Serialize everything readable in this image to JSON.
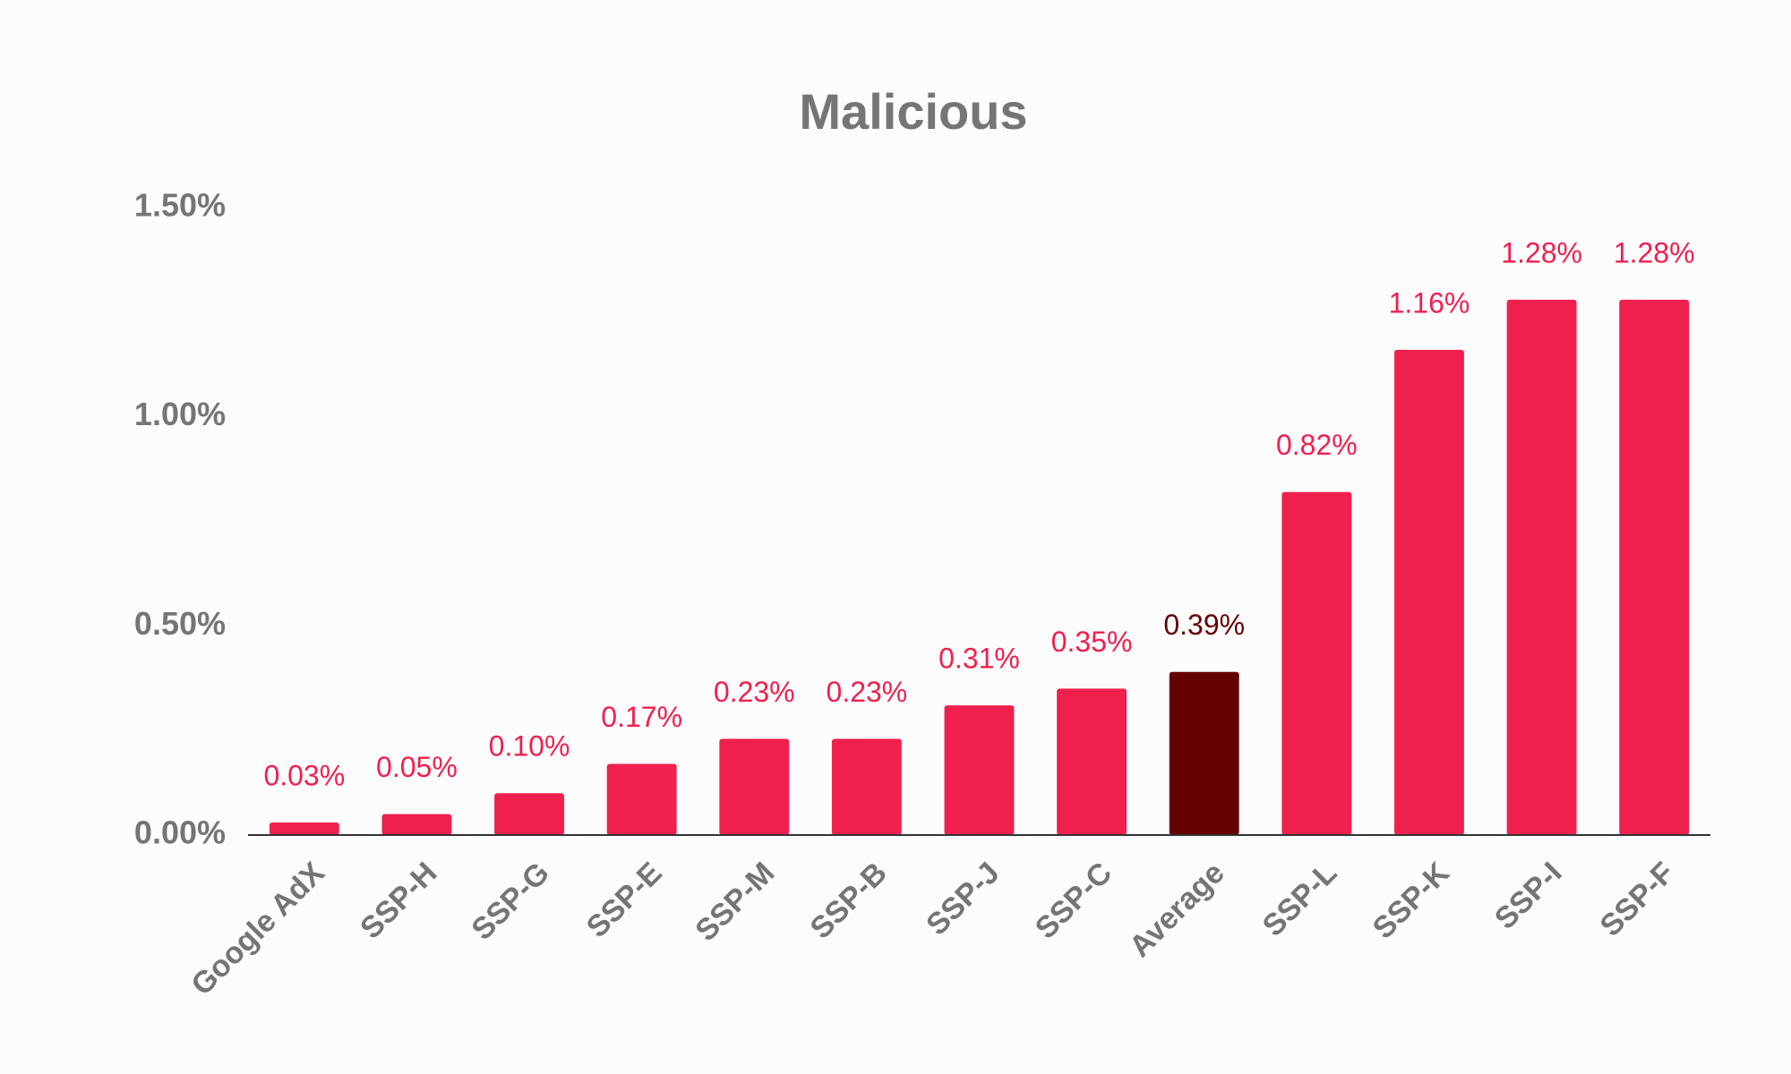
{
  "chart_data": {
    "type": "bar",
    "title": "Malicious",
    "categories": [
      "Google AdX",
      "SSP-H",
      "SSP-G",
      "SSP-E",
      "SSP-M",
      "SSP-B",
      "SSP-J",
      "SSP-C",
      "Average",
      "SSP-L",
      "SSP-K",
      "SSP-I",
      "SSP-F"
    ],
    "values": [
      0.03,
      0.05,
      0.1,
      0.17,
      0.23,
      0.23,
      0.31,
      0.35,
      0.39,
      0.82,
      1.16,
      1.28,
      1.28
    ],
    "value_labels": [
      "0.03%",
      "0.05%",
      "0.10%",
      "0.17%",
      "0.23%",
      "0.23%",
      "0.31%",
      "0.35%",
      "0.39%",
      "0.82%",
      "1.16%",
      "1.28%",
      "1.28%"
    ],
    "colors": [
      "#f0204e",
      "#f0204e",
      "#f0204e",
      "#f0204e",
      "#f0204e",
      "#f0204e",
      "#f0204e",
      "#f0204e",
      "#650000",
      "#f0204e",
      "#f0204e",
      "#f0204e",
      "#f0204e"
    ],
    "ylim": [
      0,
      1.5
    ],
    "yticks": [
      {
        "value": 0,
        "label": "0.00%"
      },
      {
        "value": 0.5,
        "label": "0.50%"
      },
      {
        "value": 1.0,
        "label": "1.00%"
      },
      {
        "value": 1.5,
        "label": "1.50%"
      }
    ],
    "grid": false
  }
}
